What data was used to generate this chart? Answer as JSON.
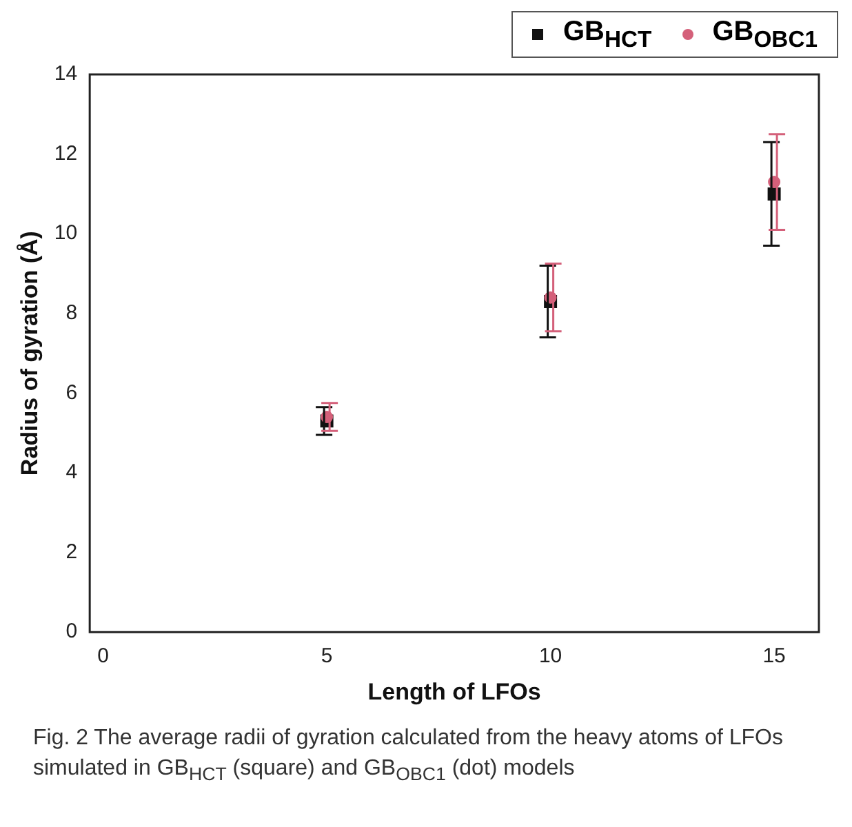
{
  "chart_data": {
    "type": "scatter",
    "xlabel": "Length of LFOs",
    "ylabel": "Radius of gyration (Å)",
    "x": [
      5,
      10,
      15
    ],
    "series": [
      {
        "name": "GB$_{HCT}$",
        "color": "#111111",
        "marker": "square",
        "values": [
          5.3,
          8.3,
          11.0
        ],
        "errors": [
          0.35,
          0.9,
          1.3
        ]
      },
      {
        "name": "GB$_{OBC1}$",
        "color": "#d4607a",
        "marker": "circle",
        "values": [
          5.4,
          8.4,
          11.3
        ],
        "errors": [
          0.35,
          0.85,
          1.2
        ]
      }
    ],
    "xlim": [
      -0.3,
      16
    ],
    "xticks": [
      0,
      5,
      10,
      15
    ],
    "ylim": [
      0,
      14
    ],
    "yticks": [
      0,
      2,
      4,
      6,
      8,
      10,
      12,
      14
    ],
    "grid": false,
    "legend": "top right",
    "annotations": [
      "Fig. 2 The average radii of gyration calculated from the heavy atoms of LFOs simulated in GB$_{HCT}$ (square) and GB$_{OBC1}$ (dot) models"
    ]
  }
}
